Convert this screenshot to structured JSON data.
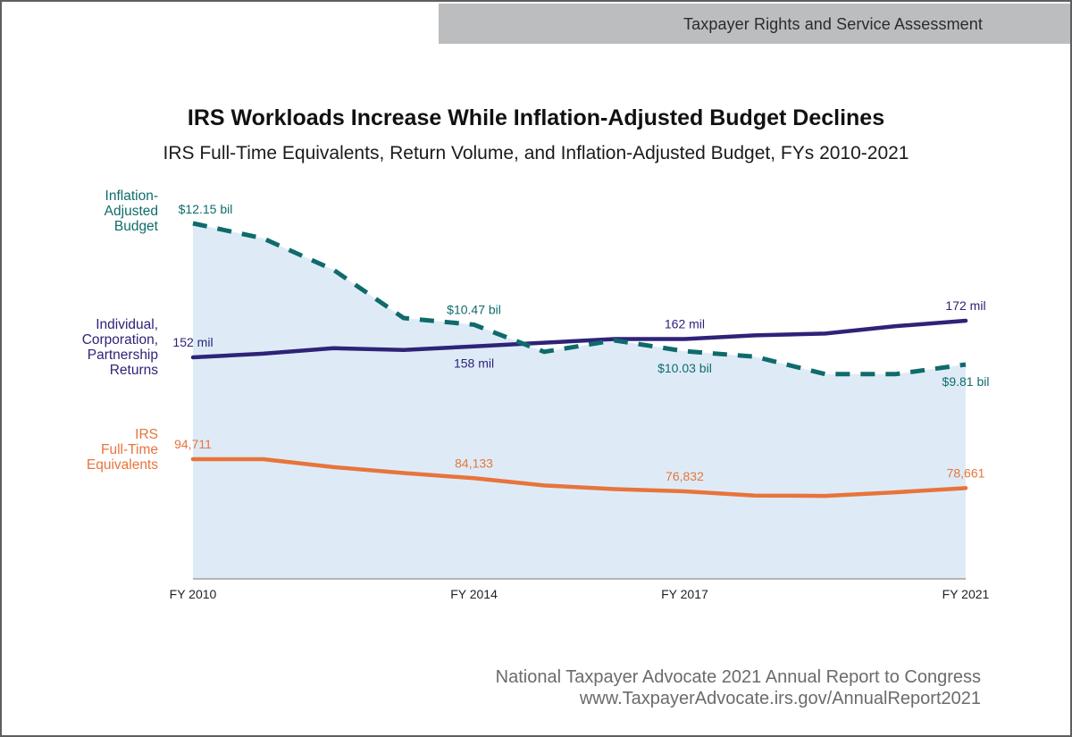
{
  "header": {
    "section": "Taxpayer Rights and Service Assessment"
  },
  "footer": {
    "line1": "National Taxpayer Advocate 2021 Annual Report to Congress",
    "line2": "www.TaxpayerAdvocate.irs.gov/AnnualReport2021"
  },
  "colors": {
    "budget": "#0f6b6b",
    "returns": "#2e2378",
    "fte": "#e8743b",
    "area": "#deebf7",
    "axis": "#a0a0a0"
  },
  "chart_data": {
    "type": "line",
    "title": "IRS Workloads Increase While Inflation-Adjusted Budget Declines",
    "subtitle": "IRS Full-Time Equivalents, Return Volume, and Inflation-Adjusted Budget, FYs 2010-2021",
    "xlabel": "",
    "ylabel": "",
    "x": [
      2010,
      2011,
      2012,
      2013,
      2014,
      2015,
      2016,
      2017,
      2018,
      2019,
      2020,
      2021
    ],
    "x_tick_labels": [
      {
        "x": 2010,
        "label": "FY 2010"
      },
      {
        "x": 2014,
        "label": "FY 2014"
      },
      {
        "x": 2017,
        "label": "FY 2017"
      },
      {
        "x": 2021,
        "label": "FY 2021"
      }
    ],
    "grid": false,
    "legend": "left-inline",
    "series": [
      {
        "name": "Inflation-Adjusted Budget",
        "legend_lines": [
          "Inflation-",
          "Adjusted",
          "Budget"
        ],
        "unit": "$ billions",
        "style": "dashed",
        "area_fill": true,
        "values": [
          12.15,
          11.9,
          11.38,
          10.58,
          10.47,
          10.02,
          10.21,
          10.03,
          9.94,
          9.65,
          9.65,
          9.81
        ],
        "ylim": [
          7.0,
          12.15
        ],
        "data_labels": [
          {
            "x": 2010,
            "text": "$12.15 bil",
            "pos": "above"
          },
          {
            "x": 2014,
            "text": "$10.47 bil",
            "pos": "above"
          },
          {
            "x": 2017,
            "text": "$10.03 bil",
            "pos": "below"
          },
          {
            "x": 2021,
            "text": "$9.81 bil",
            "pos": "below"
          }
        ]
      },
      {
        "name": "Individual, Corporation, Partnership Returns",
        "legend_lines": [
          "Individual,",
          "Corporation,",
          "Partnership",
          "Returns"
        ],
        "unit": "millions",
        "style": "solid",
        "values": [
          152,
          154,
          157,
          156,
          158,
          160,
          162,
          162,
          164,
          165,
          169,
          172
        ],
        "data_labels": [
          {
            "x": 2010,
            "text": "152 mil",
            "pos": "above"
          },
          {
            "x": 2014,
            "text": "158 mil",
            "pos": "below"
          },
          {
            "x": 2017,
            "text": "162 mil",
            "pos": "above"
          },
          {
            "x": 2021,
            "text": "172 mil",
            "pos": "above"
          }
        ]
      },
      {
        "name": "IRS Full-Time Equivalents",
        "legend_lines": [
          "IRS",
          "Full-Time",
          "Equivalents"
        ],
        "unit": "FTEs",
        "style": "solid",
        "values": [
          94711,
          94700,
          90300,
          87000,
          84133,
          80100,
          78100,
          76832,
          74500,
          74300,
          76300,
          78661
        ],
        "data_labels": [
          {
            "x": 2010,
            "text": "94,711",
            "pos": "above"
          },
          {
            "x": 2014,
            "text": "84,133",
            "pos": "above"
          },
          {
            "x": 2017,
            "text": "76,832",
            "pos": "above"
          },
          {
            "x": 2021,
            "text": "78,661",
            "pos": "above"
          }
        ]
      }
    ]
  }
}
